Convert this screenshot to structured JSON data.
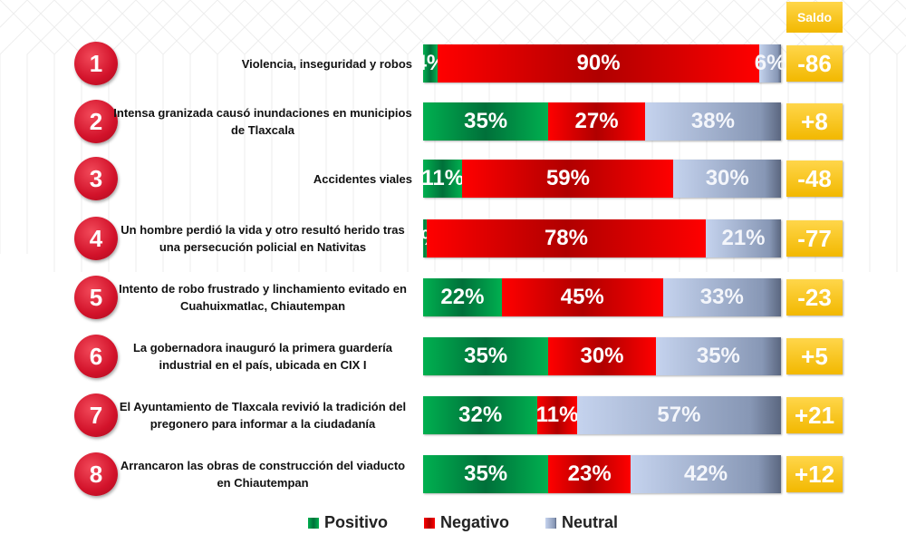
{
  "chart_data": {
    "type": "bar",
    "stacked": true,
    "orientation": "horizontal",
    "saldo_header": "Saldo",
    "categories": [
      {
        "num": "1",
        "label": "Violencia, inseguridad y robos"
      },
      {
        "num": "2",
        "label": "Intensa granizada causó inundaciones en municipios de Tlaxcala"
      },
      {
        "num": "3",
        "label": "Accidentes viales"
      },
      {
        "num": "4",
        "label": "Un hombre perdió la vida y otro resultó herido tras una persecución policial en Nativitas"
      },
      {
        "num": "5",
        "label": "Intento de robo frustrado y linchamiento evitado en Cuahuixmatlac, Chiautempan"
      },
      {
        "num": "6",
        "label": "La gobernadora  inauguró la primera guardería industrial en el país, ubicada en  CIX I"
      },
      {
        "num": "7",
        "label": "El Ayuntamiento de Tlaxcala revivió la tradición del pregonero para informar a la ciudadanía"
      },
      {
        "num": "8",
        "label": "Arrancaron las obras de construcción del viaducto en Chiautempan"
      }
    ],
    "series": [
      {
        "name": "Positivo",
        "color": "#00b050",
        "values": [
          4,
          35,
          11,
          1,
          22,
          35,
          32,
          35
        ]
      },
      {
        "name": "Negativo",
        "color": "#ff0000",
        "values": [
          90,
          27,
          59,
          78,
          45,
          30,
          11,
          23
        ]
      },
      {
        "name": "Neutral",
        "color": "#a9b8d6",
        "values": [
          6,
          38,
          30,
          21,
          33,
          35,
          57,
          42
        ]
      }
    ],
    "saldo": [
      "-86",
      "+8",
      "-48",
      "-77",
      "-23",
      "+5",
      "+21",
      "+12"
    ],
    "saldo_color": "#f5c000",
    "legend_position": "bottom"
  }
}
